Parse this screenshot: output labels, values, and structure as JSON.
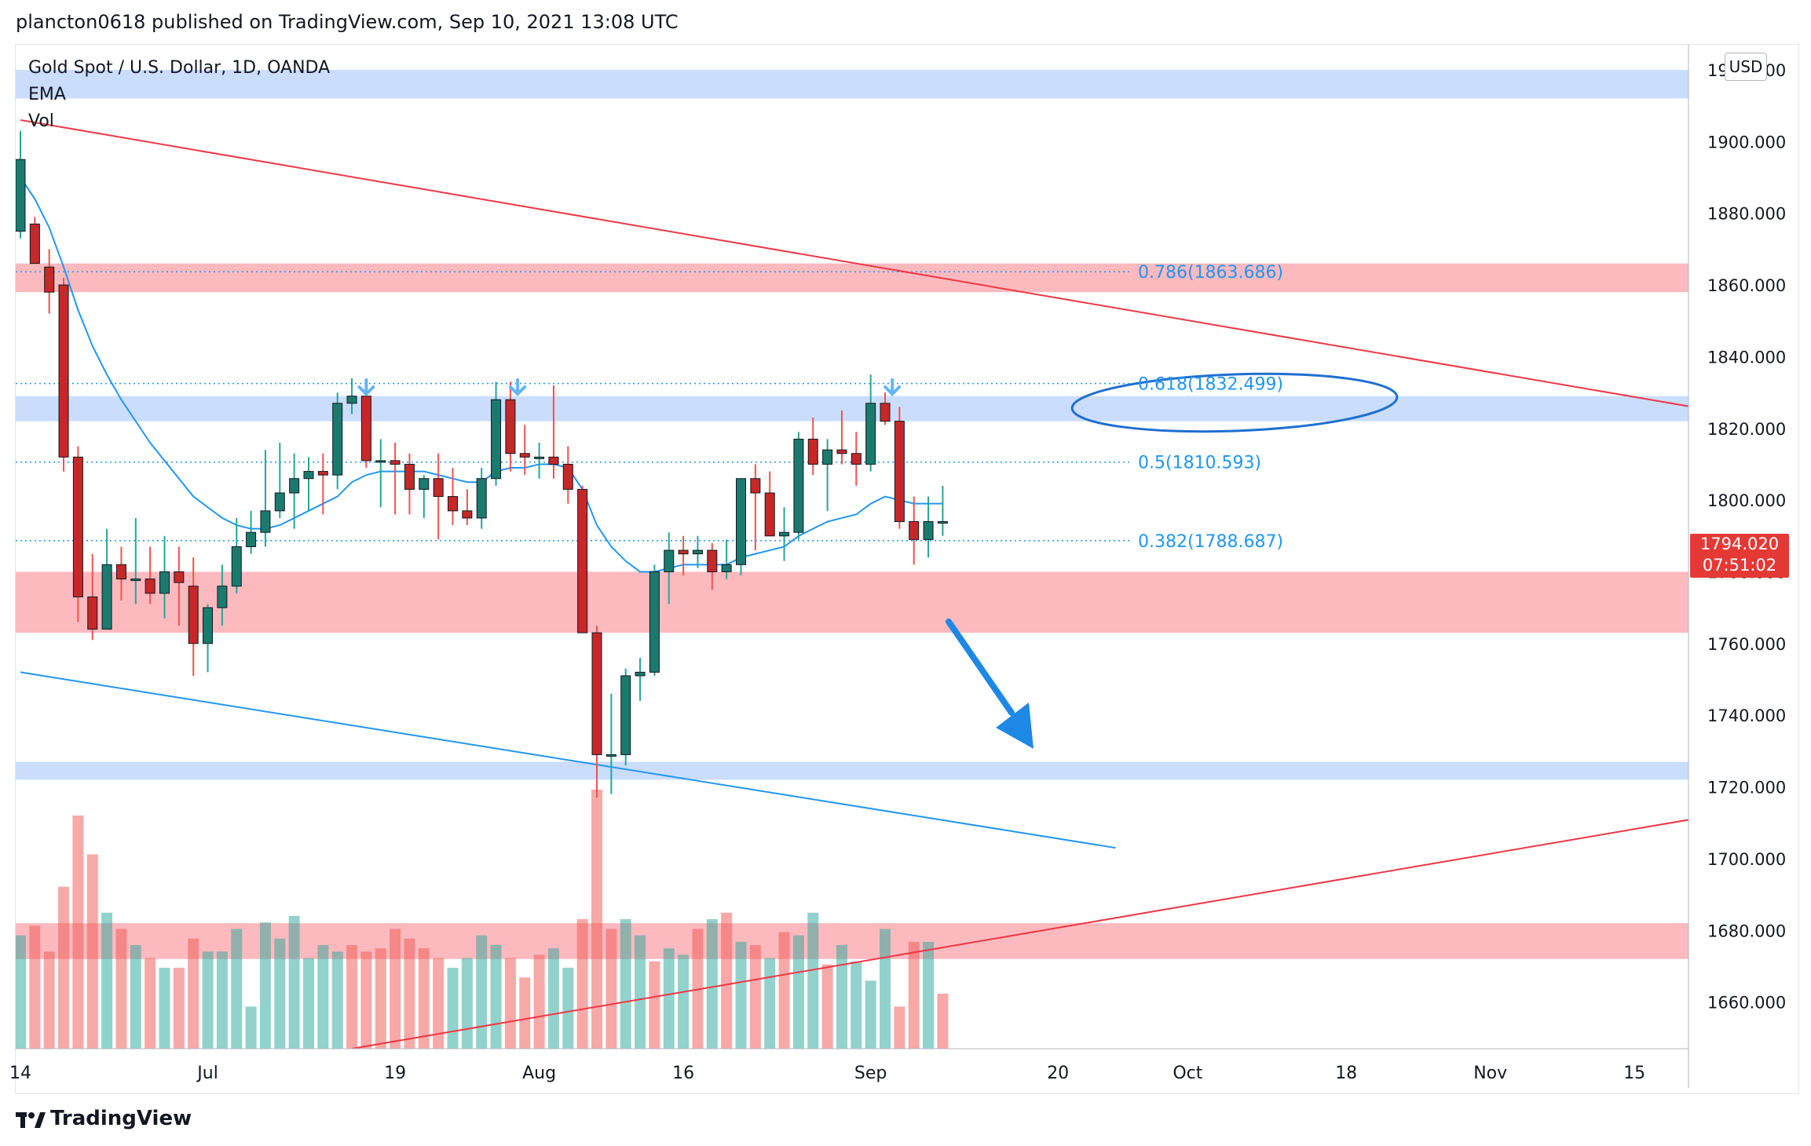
{
  "header": {
    "published": "plancton0618 published on TradingView.com, Sep 10, 2021 13:08 UTC"
  },
  "legend": {
    "symbol": "Gold Spot / U.S. Dollar, 1D, OANDA",
    "indicator1": "EMA",
    "indicator2": "Vol"
  },
  "currency_button": "USD",
  "last_price": {
    "price": "1794.020",
    "countdown": "07:51:02"
  },
  "footer": {
    "logo_text": "TradingView",
    "logo_icon": "tradingview-logo-icon"
  },
  "colors": {
    "up": "#26a69a",
    "down": "#ef5350",
    "up_body": "#1b7a6e",
    "down_body": "#c62828",
    "ema": "#2196f3",
    "trend_red": "#f23645",
    "support_blue": "#2196f3",
    "zone_red": "rgba(247,82,95,0.40)",
    "zone_blue": "rgba(66,133,244,0.28)",
    "fib": "#2196f3",
    "vol_up": "rgba(38,166,154,0.50)",
    "vol_down": "rgba(239,83,80,0.50)"
  },
  "chart_data": {
    "type": "candlestick",
    "y_axis": {
      "min": 1647,
      "max": 1927,
      "ticks": [
        1920,
        1900,
        1880,
        1860,
        1840,
        1820,
        1800,
        1780,
        1760,
        1740,
        1720,
        1700,
        1680,
        1660
      ]
    },
    "x_axis": {
      "ticks": [
        {
          "label": "14",
          "t": 0
        },
        {
          "label": "Jul",
          "t": 13
        },
        {
          "label": "19",
          "t": 26
        },
        {
          "label": "Aug",
          "t": 36
        },
        {
          "label": "16",
          "t": 46
        },
        {
          "label": "Sep",
          "t": 59
        },
        {
          "label": "20",
          "t": 72
        },
        {
          "label": "Oct",
          "t": 81
        },
        {
          "label": "18",
          "t": 92
        },
        {
          "label": "Nov",
          "t": 102
        },
        {
          "label": "15",
          "t": 112
        }
      ],
      "t_max": 116
    },
    "candles": [
      {
        "o": 1875,
        "h": 1903,
        "l": 1873,
        "c": 1895
      },
      {
        "o": 1877,
        "h": 1879,
        "l": 1867,
        "c": 1866
      },
      {
        "o": 1865,
        "h": 1870,
        "l": 1852,
        "c": 1858
      },
      {
        "o": 1860,
        "h": 1862,
        "l": 1808,
        "c": 1812
      },
      {
        "o": 1812,
        "h": 1815,
        "l": 1766,
        "c": 1773
      },
      {
        "o": 1773,
        "h": 1785,
        "l": 1761,
        "c": 1764
      },
      {
        "o": 1764,
        "h": 1792,
        "l": 1764,
        "c": 1782
      },
      {
        "o": 1782,
        "h": 1787,
        "l": 1772,
        "c": 1778
      },
      {
        "o": 1778,
        "h": 1795,
        "l": 1771,
        "c": 1778
      },
      {
        "o": 1778,
        "h": 1787,
        "l": 1771,
        "c": 1774
      },
      {
        "o": 1774,
        "h": 1790,
        "l": 1767,
        "c": 1780
      },
      {
        "o": 1780,
        "h": 1787,
        "l": 1765,
        "c": 1777
      },
      {
        "o": 1776,
        "h": 1784,
        "l": 1751,
        "c": 1760
      },
      {
        "o": 1760,
        "h": 1771,
        "l": 1752,
        "c": 1770
      },
      {
        "o": 1770,
        "h": 1782,
        "l": 1765,
        "c": 1776
      },
      {
        "o": 1776,
        "h": 1795,
        "l": 1774,
        "c": 1787
      },
      {
        "o": 1787,
        "h": 1797,
        "l": 1785,
        "c": 1791
      },
      {
        "o": 1791,
        "h": 1814,
        "l": 1787,
        "c": 1797
      },
      {
        "o": 1797,
        "h": 1816,
        "l": 1795,
        "c": 1802
      },
      {
        "o": 1802,
        "h": 1813,
        "l": 1792,
        "c": 1806
      },
      {
        "o": 1806,
        "h": 1812,
        "l": 1797,
        "c": 1808
      },
      {
        "o": 1808,
        "h": 1813,
        "l": 1796,
        "c": 1807
      },
      {
        "o": 1807,
        "h": 1830,
        "l": 1803,
        "c": 1827
      },
      {
        "o": 1827,
        "h": 1834,
        "l": 1824,
        "c": 1829
      },
      {
        "o": 1829,
        "h": 1831,
        "l": 1809,
        "c": 1811
      },
      {
        "o": 1811,
        "h": 1817,
        "l": 1798,
        "c": 1811
      },
      {
        "o": 1811,
        "h": 1816,
        "l": 1796,
        "c": 1810
      },
      {
        "o": 1810,
        "h": 1813,
        "l": 1796,
        "c": 1803
      },
      {
        "o": 1803,
        "h": 1807,
        "l": 1795,
        "c": 1806
      },
      {
        "o": 1806,
        "h": 1813,
        "l": 1789,
        "c": 1801
      },
      {
        "o": 1801,
        "h": 1809,
        "l": 1793,
        "c": 1797
      },
      {
        "o": 1797,
        "h": 1803,
        "l": 1793,
        "c": 1795
      },
      {
        "o": 1795,
        "h": 1809,
        "l": 1792,
        "c": 1806
      },
      {
        "o": 1806,
        "h": 1833,
        "l": 1804,
        "c": 1828
      },
      {
        "o": 1828,
        "h": 1833,
        "l": 1808,
        "c": 1813
      },
      {
        "o": 1813,
        "h": 1821,
        "l": 1807,
        "c": 1812
      },
      {
        "o": 1812,
        "h": 1816,
        "l": 1806,
        "c": 1812
      },
      {
        "o": 1812,
        "h": 1832,
        "l": 1806,
        "c": 1810
      },
      {
        "o": 1810,
        "h": 1815,
        "l": 1799,
        "c": 1803
      },
      {
        "o": 1803,
        "h": 1804,
        "l": 1763,
        "c": 1763
      },
      {
        "o": 1763,
        "h": 1765,
        "l": 1717,
        "c": 1729
      },
      {
        "o": 1729,
        "h": 1746,
        "l": 1718,
        "c": 1729
      },
      {
        "o": 1729,
        "h": 1753,
        "l": 1726,
        "c": 1751
      },
      {
        "o": 1751,
        "h": 1756,
        "l": 1744,
        "c": 1752
      },
      {
        "o": 1752,
        "h": 1782,
        "l": 1751,
        "c": 1780
      },
      {
        "o": 1780,
        "h": 1791,
        "l": 1771,
        "c": 1786
      },
      {
        "o": 1786,
        "h": 1790,
        "l": 1779,
        "c": 1785
      },
      {
        "o": 1785,
        "h": 1790,
        "l": 1781,
        "c": 1786
      },
      {
        "o": 1786,
        "h": 1788,
        "l": 1775,
        "c": 1780
      },
      {
        "o": 1780,
        "h": 1789,
        "l": 1778,
        "c": 1782
      },
      {
        "o": 1782,
        "h": 1806,
        "l": 1779,
        "c": 1806
      },
      {
        "o": 1806,
        "h": 1810,
        "l": 1786,
        "c": 1802
      },
      {
        "o": 1802,
        "h": 1808,
        "l": 1791,
        "c": 1790
      },
      {
        "o": 1790,
        "h": 1798,
        "l": 1783,
        "c": 1791
      },
      {
        "o": 1791,
        "h": 1819,
        "l": 1789,
        "c": 1817
      },
      {
        "o": 1817,
        "h": 1823,
        "l": 1807,
        "c": 1810
      },
      {
        "o": 1810,
        "h": 1817,
        "l": 1797,
        "c": 1814
      },
      {
        "o": 1814,
        "h": 1825,
        "l": 1810,
        "c": 1813
      },
      {
        "o": 1813,
        "h": 1819,
        "l": 1804,
        "c": 1810
      },
      {
        "o": 1810,
        "h": 1835,
        "l": 1808,
        "c": 1827
      },
      {
        "o": 1827,
        "h": 1830,
        "l": 1821,
        "c": 1822
      },
      {
        "o": 1822,
        "h": 1826,
        "l": 1792,
        "c": 1794
      },
      {
        "o": 1794,
        "h": 1801,
        "l": 1782,
        "c": 1789
      },
      {
        "o": 1789,
        "h": 1801,
        "l": 1784,
        "c": 1794
      },
      {
        "o": 1794,
        "h": 1804,
        "l": 1790,
        "c": 1794
      }
    ],
    "ema": [
      1890,
      1884,
      1876,
      1865,
      1853,
      1843,
      1835,
      1828,
      1822,
      1816,
      1811,
      1806,
      1801,
      1798,
      1795,
      1793,
      1792,
      1792,
      1793,
      1795,
      1797,
      1799,
      1801,
      1805,
      1807,
      1808,
      1808,
      1808,
      1808,
      1807,
      1806,
      1805,
      1805,
      1808,
      1809,
      1809,
      1810,
      1810,
      1809,
      1803,
      1793,
      1787,
      1783,
      1780,
      1780,
      1781,
      1782,
      1782,
      1782,
      1782,
      1784,
      1785,
      1786,
      1787,
      1790,
      1792,
      1794,
      1795,
      1796,
      1799,
      1801,
      1800,
      1799,
      1799,
      1799
    ],
    "volume": [
      {
        "v": 0.35,
        "up": true
      },
      {
        "v": 0.38,
        "up": false
      },
      {
        "v": 0.3,
        "up": false
      },
      {
        "v": 0.5,
        "up": false
      },
      {
        "v": 0.72,
        "up": false
      },
      {
        "v": 0.6,
        "up": false
      },
      {
        "v": 0.42,
        "up": true
      },
      {
        "v": 0.37,
        "up": false
      },
      {
        "v": 0.32,
        "up": true
      },
      {
        "v": 0.28,
        "up": false
      },
      {
        "v": 0.25,
        "up": true
      },
      {
        "v": 0.25,
        "up": false
      },
      {
        "v": 0.34,
        "up": false
      },
      {
        "v": 0.3,
        "up": true
      },
      {
        "v": 0.3,
        "up": true
      },
      {
        "v": 0.37,
        "up": true
      },
      {
        "v": 0.13,
        "up": true
      },
      {
        "v": 0.39,
        "up": true
      },
      {
        "v": 0.34,
        "up": true
      },
      {
        "v": 0.41,
        "up": true
      },
      {
        "v": 0.28,
        "up": true
      },
      {
        "v": 0.32,
        "up": true
      },
      {
        "v": 0.3,
        "up": true
      },
      {
        "v": 0.32,
        "up": false
      },
      {
        "v": 0.3,
        "up": false
      },
      {
        "v": 0.31,
        "up": false
      },
      {
        "v": 0.37,
        "up": false
      },
      {
        "v": 0.34,
        "up": false
      },
      {
        "v": 0.31,
        "up": false
      },
      {
        "v": 0.28,
        "up": false
      },
      {
        "v": 0.25,
        "up": true
      },
      {
        "v": 0.28,
        "up": true
      },
      {
        "v": 0.35,
        "up": true
      },
      {
        "v": 0.32,
        "up": true
      },
      {
        "v": 0.28,
        "up": false
      },
      {
        "v": 0.22,
        "up": false
      },
      {
        "v": 0.29,
        "up": false
      },
      {
        "v": 0.31,
        "up": true
      },
      {
        "v": 0.25,
        "up": true
      },
      {
        "v": 0.4,
        "up": false
      },
      {
        "v": 0.8,
        "up": false
      },
      {
        "v": 0.37,
        "up": false
      },
      {
        "v": 0.4,
        "up": true
      },
      {
        "v": 0.35,
        "up": true
      },
      {
        "v": 0.27,
        "up": false
      },
      {
        "v": 0.31,
        "up": true
      },
      {
        "v": 0.29,
        "up": true
      },
      {
        "v": 0.37,
        "up": false
      },
      {
        "v": 0.4,
        "up": true
      },
      {
        "v": 0.42,
        "up": false
      },
      {
        "v": 0.33,
        "up": true
      },
      {
        "v": 0.32,
        "up": false
      },
      {
        "v": 0.28,
        "up": true
      },
      {
        "v": 0.36,
        "up": false
      },
      {
        "v": 0.35,
        "up": true
      },
      {
        "v": 0.42,
        "up": true
      },
      {
        "v": 0.26,
        "up": false
      },
      {
        "v": 0.32,
        "up": true
      },
      {
        "v": 0.27,
        "up": true
      },
      {
        "v": 0.21,
        "up": true
      },
      {
        "v": 0.37,
        "up": true
      },
      {
        "v": 0.13,
        "up": false
      },
      {
        "v": 0.33,
        "up": false
      },
      {
        "v": 0.33,
        "up": true
      },
      {
        "v": 0.17,
        "up": false
      }
    ],
    "zones": [
      {
        "kind": "blue",
        "from": 1912,
        "to": 1920
      },
      {
        "kind": "red",
        "from": 1858,
        "to": 1866
      },
      {
        "kind": "blue",
        "from": 1822,
        "to": 1829
      },
      {
        "kind": "red",
        "from": 1763,
        "to": 1780
      },
      {
        "kind": "blue",
        "from": 1722,
        "to": 1727
      },
      {
        "kind": "red",
        "from": 1672,
        "to": 1682
      }
    ],
    "fib_levels": [
      {
        "label": "0.786(1863.686)",
        "price": 1863.686
      },
      {
        "label": "0.618(1832.499)",
        "price": 1832.499
      },
      {
        "label": "0.5(1810.593)",
        "price": 1810.593
      },
      {
        "label": "0.382(1788.687)",
        "price": 1788.687
      }
    ],
    "trendlines": [
      {
        "color": "red",
        "p1": {
          "t": 0,
          "price": 1906
        },
        "p2": {
          "t": 116,
          "price": 1826
        }
      },
      {
        "color": "red",
        "p1": {
          "t": 23,
          "price": 1647
        },
        "p2": {
          "t": 116,
          "price": 1711
        }
      },
      {
        "color": "blue",
        "p1": {
          "t": 0,
          "price": 1752
        },
        "p2": {
          "t": 76,
          "price": 1703
        }
      }
    ],
    "peak_markers": [
      {
        "t": 24
      },
      {
        "t": 34.5
      },
      {
        "t": 60.5
      }
    ]
  }
}
